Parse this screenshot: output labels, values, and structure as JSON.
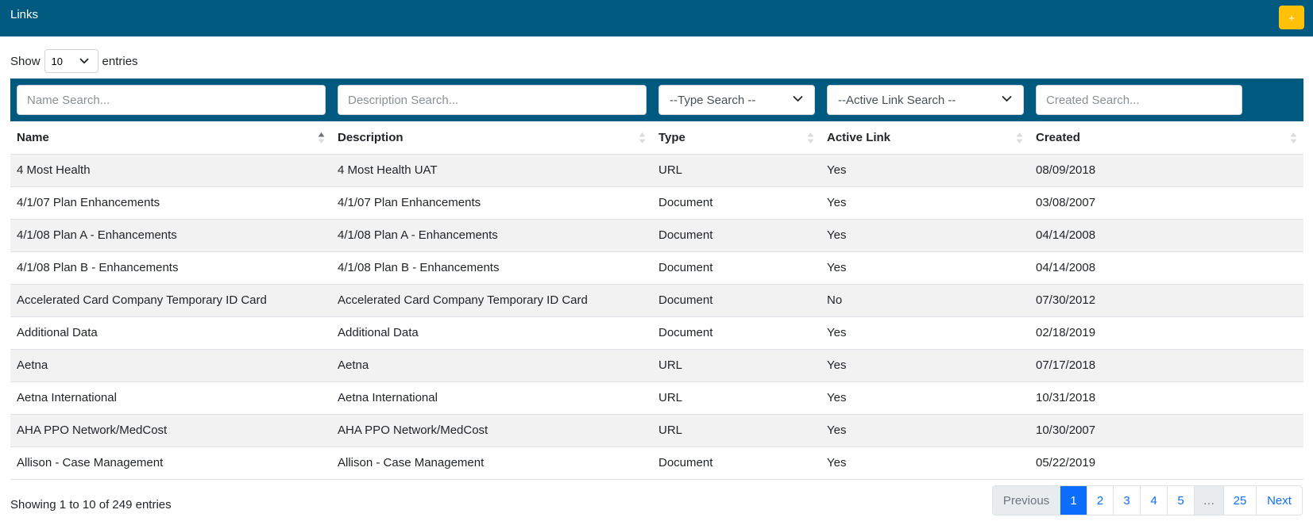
{
  "header": {
    "title": "Links",
    "add_label": "+"
  },
  "length_menu": {
    "show_label": "Show",
    "selected": "10",
    "entries_label": "entries"
  },
  "filters": {
    "name_placeholder": "Name Search...",
    "description_placeholder": "Description Search...",
    "type_selected": "--Type Search --",
    "active_selected": "--Active Link Search --",
    "created_placeholder": "Created Search..."
  },
  "table": {
    "columns": [
      "Name",
      "Description",
      "Type",
      "Active Link",
      "Created"
    ],
    "rows": [
      [
        "4 Most Health",
        "4 Most Health UAT",
        "URL",
        "Yes",
        "08/09/2018"
      ],
      [
        "4/1/07 Plan Enhancements",
        "4/1/07 Plan Enhancements",
        "Document",
        "Yes",
        "03/08/2007"
      ],
      [
        "4/1/08 Plan A - Enhancements",
        "4/1/08 Plan A - Enhancements",
        "Document",
        "Yes",
        "04/14/2008"
      ],
      [
        "4/1/08 Plan B - Enhancements",
        "4/1/08 Plan B - Enhancements",
        "Document",
        "Yes",
        "04/14/2008"
      ],
      [
        "Accelerated Card Company Temporary ID Card",
        "Accelerated Card Company Temporary ID Card",
        "Document",
        "No",
        "07/30/2012"
      ],
      [
        "Additional Data",
        "Additional Data",
        "Document",
        "Yes",
        "02/18/2019"
      ],
      [
        "Aetna",
        "Aetna",
        "URL",
        "Yes",
        "07/17/2018"
      ],
      [
        "Aetna International",
        "Aetna International",
        "URL",
        "Yes",
        "10/31/2018"
      ],
      [
        "AHA PPO Network/MedCost",
        "AHA PPO Network/MedCost",
        "URL",
        "Yes",
        "10/30/2007"
      ],
      [
        "Allison - Case Management",
        "Allison - Case Management",
        "Document",
        "Yes",
        "05/22/2019"
      ]
    ]
  },
  "info": "Showing 1 to 10 of 249 entries",
  "pagination": {
    "previous": "Previous",
    "pages": [
      "1",
      "2",
      "3",
      "4",
      "5",
      "…",
      "25"
    ],
    "next": "Next"
  },
  "colors": {
    "header_bg": "#005a7f",
    "add_button": "#ffc107",
    "active_page": "#0d6efd"
  }
}
